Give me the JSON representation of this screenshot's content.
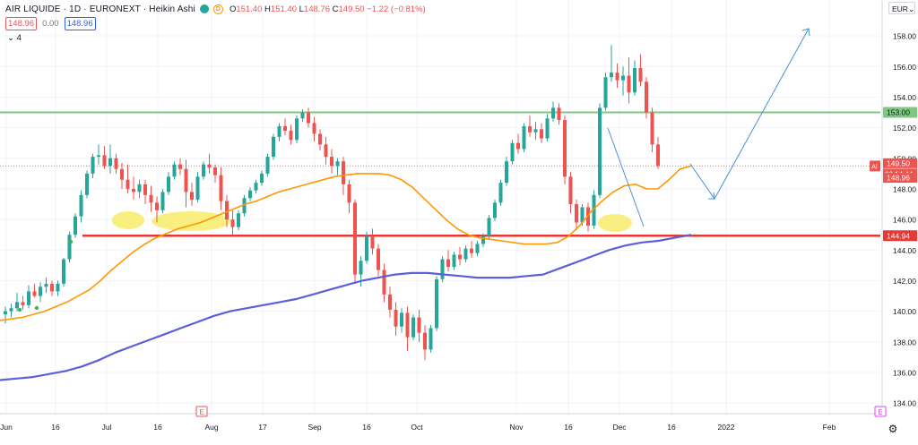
{
  "header": {
    "symbol_line": "AIR LIQUIDE · 1D · EURONEXT · Heikin Ashi",
    "badge_green": "",
    "badge_orange": "D",
    "ohlc": {
      "o_label": "O",
      "o": "151.40",
      "h_label": "H",
      "h": "151.40",
      "l_label": "L",
      "l": "148.76",
      "c_label": "C",
      "c": "149.50",
      "change": "−1.22 (−0.81%)"
    },
    "sell_price": "148.96",
    "spread": "0.00",
    "buy_price": "148.96",
    "indicator_count": "4"
  },
  "toolbar": {
    "currency": "EUR",
    "settings_icon": "gear-icon"
  },
  "price_axis": {
    "ticks": [
      "158.00",
      "156.00",
      "154.00",
      "152.00",
      "150.00",
      "148.00",
      "146.00",
      "144.00",
      "142.00",
      "140.00",
      "138.00",
      "136.00",
      "134.00"
    ],
    "label_resistance": "153.00",
    "label_last": "149.50",
    "label_countdown": "06:14:44",
    "label_bid": "148.96",
    "label_support": "144.94",
    "marker_al": "Al"
  },
  "time_axis": {
    "labels": [
      "Jun",
      "16",
      "Jul",
      "16",
      "Aug",
      "17",
      "Sep",
      "16",
      "Oct",
      "Nov",
      "16",
      "Dec",
      "16",
      "2022",
      "Feb"
    ],
    "event_marker": "E",
    "event_marker_right": "E"
  },
  "chart_data": {
    "type": "candlestick",
    "chart_style": "Heikin Ashi",
    "symbol": "AIR LIQUIDE",
    "interval": "1D",
    "exchange": "EURONEXT",
    "y_range": [
      133.6,
      159.0
    ],
    "candles": [
      [
        139.8,
        140.3,
        139.2,
        140.0
      ],
      [
        140.0,
        140.5,
        139.6,
        140.2
      ],
      [
        140.2,
        141.2,
        140.0,
        140.6
      ],
      [
        140.6,
        141.0,
        140.1,
        140.4
      ],
      [
        140.4,
        141.7,
        140.2,
        141.3
      ],
      [
        141.3,
        141.8,
        140.9,
        141.0
      ],
      [
        141.0,
        141.9,
        140.6,
        141.6
      ],
      [
        141.6,
        142.2,
        141.2,
        141.8
      ],
      [
        141.8,
        142.0,
        141.0,
        141.3
      ],
      [
        141.3,
        142.0,
        141.0,
        141.8
      ],
      [
        141.8,
        143.5,
        141.6,
        143.4
      ],
      [
        143.4,
        145.2,
        143.2,
        145.0
      ],
      [
        145.0,
        146.4,
        144.8,
        146.2
      ],
      [
        146.2,
        147.9,
        145.8,
        147.6
      ],
      [
        147.6,
        149.2,
        147.4,
        149.0
      ],
      [
        149.0,
        150.3,
        148.7,
        150.1
      ],
      [
        150.1,
        150.9,
        149.6,
        150.2
      ],
      [
        150.2,
        150.8,
        149.3,
        149.5
      ],
      [
        149.5,
        150.9,
        149.0,
        150.0
      ],
      [
        150.0,
        150.3,
        149.0,
        149.3
      ],
      [
        149.3,
        149.7,
        148.0,
        148.6
      ],
      [
        148.6,
        149.6,
        147.7,
        148.0
      ],
      [
        148.0,
        148.8,
        147.3,
        147.8
      ],
      [
        147.8,
        148.6,
        147.4,
        148.3
      ],
      [
        148.3,
        148.6,
        147.0,
        147.6
      ],
      [
        147.6,
        148.2,
        146.5,
        147.1
      ],
      [
        147.1,
        147.5,
        145.8,
        146.6
      ],
      [
        146.6,
        148.0,
        146.4,
        147.8
      ],
      [
        147.8,
        149.1,
        147.6,
        148.8
      ],
      [
        148.8,
        149.8,
        148.6,
        149.6
      ],
      [
        149.6,
        150.0,
        148.9,
        149.3
      ],
      [
        149.3,
        149.9,
        146.8,
        147.8
      ],
      [
        147.8,
        148.4,
        146.9,
        147.3
      ],
      [
        147.3,
        149.1,
        147.1,
        148.8
      ],
      [
        148.8,
        149.8,
        148.6,
        149.6
      ],
      [
        149.6,
        150.3,
        149.0,
        149.4
      ],
      [
        149.4,
        149.6,
        148.4,
        148.9
      ],
      [
        148.9,
        149.4,
        146.6,
        147.2
      ],
      [
        147.2,
        147.6,
        145.5,
        146.0
      ],
      [
        146.0,
        146.6,
        145.0,
        145.5
      ],
      [
        145.5,
        146.6,
        145.3,
        146.4
      ],
      [
        146.4,
        147.6,
        146.2,
        147.4
      ],
      [
        147.4,
        148.1,
        147.2,
        147.9
      ],
      [
        147.9,
        148.6,
        147.7,
        148.4
      ],
      [
        148.4,
        149.2,
        148.2,
        149.0
      ],
      [
        149.0,
        150.3,
        148.8,
        150.1
      ],
      [
        150.1,
        151.6,
        149.9,
        151.4
      ],
      [
        151.4,
        152.3,
        151.1,
        152.1
      ],
      [
        152.1,
        152.6,
        151.5,
        151.8
      ],
      [
        151.8,
        152.2,
        150.9,
        151.2
      ],
      [
        151.2,
        152.8,
        151.0,
        152.6
      ],
      [
        152.6,
        153.2,
        152.4,
        153.0
      ],
      [
        153.0,
        153.3,
        152.0,
        152.3
      ],
      [
        152.3,
        152.7,
        151.1,
        151.6
      ],
      [
        151.6,
        151.9,
        150.5,
        150.9
      ],
      [
        150.9,
        151.4,
        149.6,
        150.1
      ],
      [
        150.1,
        150.6,
        149.0,
        149.5
      ],
      [
        149.5,
        150.0,
        148.9,
        149.8
      ],
      [
        149.8,
        150.1,
        147.6,
        148.3
      ],
      [
        148.3,
        148.6,
        146.4,
        147.1
      ],
      [
        147.1,
        147.3,
        141.8,
        142.4
      ],
      [
        142.4,
        143.6,
        141.6,
        143.3
      ],
      [
        143.3,
        145.2,
        143.1,
        144.9
      ],
      [
        144.9,
        145.4,
        143.7,
        144.1
      ],
      [
        144.1,
        144.4,
        142.3,
        142.7
      ],
      [
        142.7,
        143.1,
        140.6,
        141.1
      ],
      [
        141.1,
        141.6,
        139.6,
        140.1
      ],
      [
        140.1,
        140.6,
        138.4,
        139.0
      ],
      [
        139.0,
        140.2,
        138.6,
        139.9
      ],
      [
        139.9,
        140.3,
        137.4,
        138.3
      ],
      [
        138.3,
        139.8,
        138.1,
        139.6
      ],
      [
        139.6,
        140.1,
        138.0,
        138.6
      ],
      [
        138.6,
        139.1,
        136.8,
        137.5
      ],
      [
        137.5,
        139.1,
        137.3,
        138.9
      ],
      [
        138.9,
        142.3,
        138.7,
        142.1
      ],
      [
        142.1,
        143.6,
        141.9,
        143.4
      ],
      [
        143.4,
        144.0,
        142.6,
        142.9
      ],
      [
        142.9,
        143.9,
        142.7,
        143.7
      ],
      [
        143.7,
        144.2,
        143.0,
        143.4
      ],
      [
        143.4,
        144.3,
        143.2,
        144.1
      ],
      [
        144.1,
        144.6,
        143.5,
        143.8
      ],
      [
        143.8,
        144.6,
        143.6,
        144.4
      ],
      [
        144.4,
        145.1,
        144.2,
        144.9
      ],
      [
        144.9,
        146.3,
        144.7,
        146.1
      ],
      [
        146.1,
        147.3,
        145.9,
        147.1
      ],
      [
        147.1,
        148.6,
        146.9,
        148.4
      ],
      [
        148.4,
        150.1,
        148.2,
        149.8
      ],
      [
        149.8,
        151.2,
        149.6,
        151.0
      ],
      [
        151.0,
        151.6,
        150.3,
        150.6
      ],
      [
        150.6,
        152.3,
        150.4,
        152.1
      ],
      [
        152.1,
        152.8,
        151.4,
        151.7
      ],
      [
        151.7,
        152.4,
        151.2,
        151.9
      ],
      [
        151.9,
        152.3,
        151.0,
        151.3
      ],
      [
        151.3,
        152.9,
        151.1,
        152.6
      ],
      [
        152.6,
        153.7,
        152.4,
        153.3
      ],
      [
        153.3,
        153.6,
        152.2,
        152.5
      ],
      [
        152.5,
        152.8,
        148.3,
        148.8
      ],
      [
        148.8,
        149.1,
        146.4,
        147.0
      ],
      [
        147.0,
        147.3,
        145.3,
        145.8
      ],
      [
        145.8,
        147.0,
        145.6,
        146.8
      ],
      [
        146.8,
        147.1,
        145.2,
        145.6
      ],
      [
        145.6,
        147.9,
        145.4,
        147.6
      ],
      [
        147.6,
        153.6,
        147.4,
        153.3
      ],
      [
        153.3,
        155.6,
        153.1,
        155.3
      ],
      [
        155.3,
        157.4,
        155.0,
        155.6
      ],
      [
        155.6,
        156.2,
        154.6,
        155.1
      ],
      [
        155.1,
        156.0,
        154.1,
        155.4
      ],
      [
        155.4,
        156.6,
        153.6,
        154.3
      ],
      [
        154.3,
        156.4,
        154.1,
        155.9
      ],
      [
        155.9,
        156.8,
        154.7,
        155.0
      ],
      [
        155.0,
        155.3,
        152.6,
        153.0
      ],
      [
        153.0,
        153.3,
        150.4,
        150.9
      ],
      [
        150.9,
        151.4,
        149.3,
        149.5
      ]
    ],
    "series": [
      {
        "name": "",
        "type": "line",
        "color": "#ff9800",
        "values": [
          139.4,
          139.5,
          139.6,
          139.8,
          140.0,
          140.3,
          140.6,
          141.0,
          141.4,
          142.0,
          142.7,
          143.3,
          143.9,
          144.4,
          144.8,
          145.1,
          145.4,
          145.6,
          145.8,
          146.1,
          146.4,
          146.7,
          147.0,
          147.2,
          147.5,
          147.8,
          148.0,
          148.2,
          148.4,
          148.6,
          148.8,
          148.9,
          149.0,
          149.0,
          149.0,
          148.9,
          148.6,
          148.1,
          147.4,
          146.7,
          146.0,
          145.4,
          145.0,
          144.8,
          144.7,
          144.6,
          144.5,
          144.4,
          144.4,
          144.4,
          144.5,
          144.9,
          145.6,
          146.5,
          147.2,
          147.8,
          148.2,
          148.3,
          148.0,
          148.0,
          148.6,
          149.3,
          149.5
        ]
      },
      {
        "name": "",
        "type": "line",
        "color": "#5b5fdb",
        "values": [
          135.5,
          135.6,
          135.7,
          135.9,
          136.1,
          136.4,
          136.8,
          137.3,
          137.7,
          138.1,
          138.5,
          138.9,
          139.3,
          139.7,
          140.0,
          140.2,
          140.4,
          140.6,
          140.8,
          141.1,
          141.4,
          141.7,
          142.0,
          142.2,
          142.4,
          142.5,
          142.5,
          142.4,
          142.3,
          142.2,
          142.2,
          142.2,
          142.3,
          142.4,
          142.8,
          143.2,
          143.6,
          144.0,
          144.3,
          144.5,
          144.6,
          144.8,
          145.0
        ]
      }
    ],
    "levels": [
      {
        "price": 153.0,
        "color": "#81c784"
      },
      {
        "price": 144.94,
        "color": "#e53935"
      },
      {
        "price": 149.5,
        "color": "#ef5350",
        "style": "dotted"
      }
    ],
    "colors": {
      "up": "#26a69a",
      "down": "#ef5350",
      "highlight": "#f7ec6a",
      "projection": "#4a90d9"
    }
  }
}
